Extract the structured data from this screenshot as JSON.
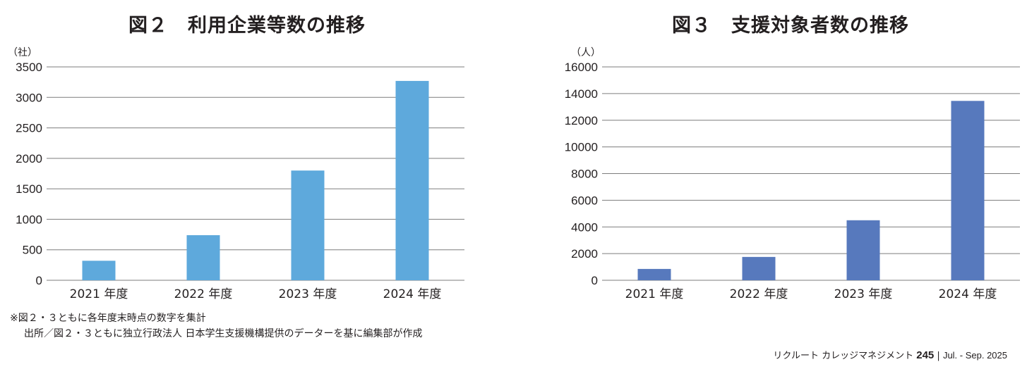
{
  "chart_data": [
    {
      "type": "bar",
      "title": "図２　利用企業等数の推移",
      "unit": "（社）",
      "categories": [
        "2021 年度",
        "2022 年度",
        "2023 年度",
        "2024 年度"
      ],
      "values": [
        320,
        740,
        1800,
        3270
      ],
      "ylim": [
        0,
        3500
      ],
      "yticks": [
        0,
        500,
        1000,
        1500,
        2000,
        2500,
        3000,
        3500
      ],
      "color": "#5ea9dc",
      "grid": true
    },
    {
      "type": "bar",
      "title": "図３　支援対象者数の推移",
      "unit": "（人）",
      "categories": [
        "2021 年度",
        "2022 年度",
        "2023 年度",
        "2024 年度"
      ],
      "values": [
        850,
        1750,
        4500,
        13450
      ],
      "ylim": [
        0,
        16000
      ],
      "yticks": [
        0,
        2000,
        4000,
        6000,
        8000,
        10000,
        12000,
        14000,
        16000
      ],
      "color": "#5779bd",
      "grid": true
    }
  ],
  "notes": [
    "※図２・３ともに各年度末時点の数字を集計",
    "出所／図２・３ともに独立行政法人 日本学生支援機構提供のデーターを基に編集部が作成"
  ],
  "footer": {
    "magazine": "リクルート カレッジマネジメント",
    "page": "245",
    "separator": "|",
    "period": "Jul. - Sep. 2025"
  }
}
